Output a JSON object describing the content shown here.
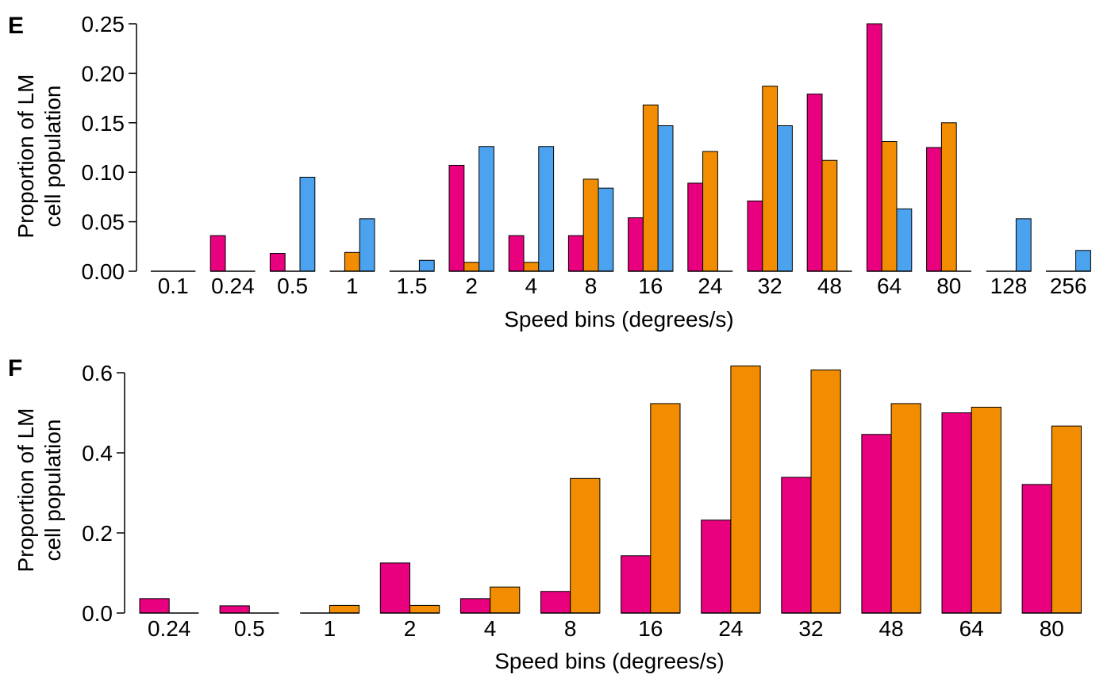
{
  "colors": {
    "magenta": "#E8007F",
    "orange": "#F28C00",
    "blue": "#4BA3F0"
  },
  "chart_data": [
    {
      "type": "bar",
      "panel": "E",
      "categories": [
        "0.1",
        "0.24",
        "0.5",
        "1",
        "1.5",
        "2",
        "4",
        "8",
        "16",
        "24",
        "32",
        "48",
        "64",
        "80",
        "128",
        "256"
      ],
      "series": [
        {
          "color": "#E8007F",
          "values": [
            0.0,
            0.036,
            0.018,
            0.0,
            0.0,
            0.107,
            0.036,
            0.036,
            0.054,
            0.089,
            0.071,
            0.179,
            0.25,
            0.125,
            0.0,
            0.0
          ]
        },
        {
          "color": "#F28C00",
          "values": [
            0.0,
            0.0,
            0.0,
            0.019,
            0.0,
            0.009,
            0.009,
            0.093,
            0.168,
            0.121,
            0.187,
            0.112,
            0.131,
            0.15,
            0.0,
            0.0
          ]
        },
        {
          "color": "#4BA3F0",
          "values": [
            0.0,
            0.0,
            0.095,
            0.053,
            0.011,
            0.126,
            0.126,
            0.084,
            0.147,
            null,
            0.147,
            null,
            0.063,
            null,
            0.053,
            0.021
          ]
        }
      ],
      "xlabel": "Speed bins (degrees/s)",
      "ylabel": [
        "Proportion of LM",
        "cell population"
      ],
      "ylim": [
        0,
        0.25
      ],
      "yticks": [
        0.0,
        0.05,
        0.1,
        0.15,
        0.2,
        0.25
      ],
      "ytick_labels": [
        "0.00",
        "0.05",
        "0.10",
        "0.15",
        "0.20",
        "0.25"
      ],
      "grid": false
    },
    {
      "type": "bar",
      "panel": "F",
      "categories": [
        "0.24",
        "0.5",
        "1",
        "2",
        "4",
        "8",
        "16",
        "24",
        "32",
        "48",
        "64",
        "80"
      ],
      "series": [
        {
          "color": "#E8007F",
          "values": [
            0.036,
            0.018,
            0.0,
            0.125,
            0.036,
            0.054,
            0.143,
            0.232,
            0.339,
            0.446,
            0.5,
            0.321
          ]
        },
        {
          "color": "#F28C00",
          "values": [
            0.0,
            0.0,
            0.019,
            0.019,
            0.065,
            0.336,
            0.523,
            0.617,
            0.607,
            0.523,
            0.514,
            0.467
          ]
        }
      ],
      "xlabel": "Speed bins (degrees/s)",
      "ylabel": [
        "Proportion of LM",
        "cell population"
      ],
      "ylim": [
        0,
        0.6
      ],
      "yticks": [
        0.0,
        0.2,
        0.4,
        0.6
      ],
      "ytick_labels": [
        "0.0",
        "0.2",
        "0.4",
        "0.6"
      ],
      "grid": false
    }
  ]
}
